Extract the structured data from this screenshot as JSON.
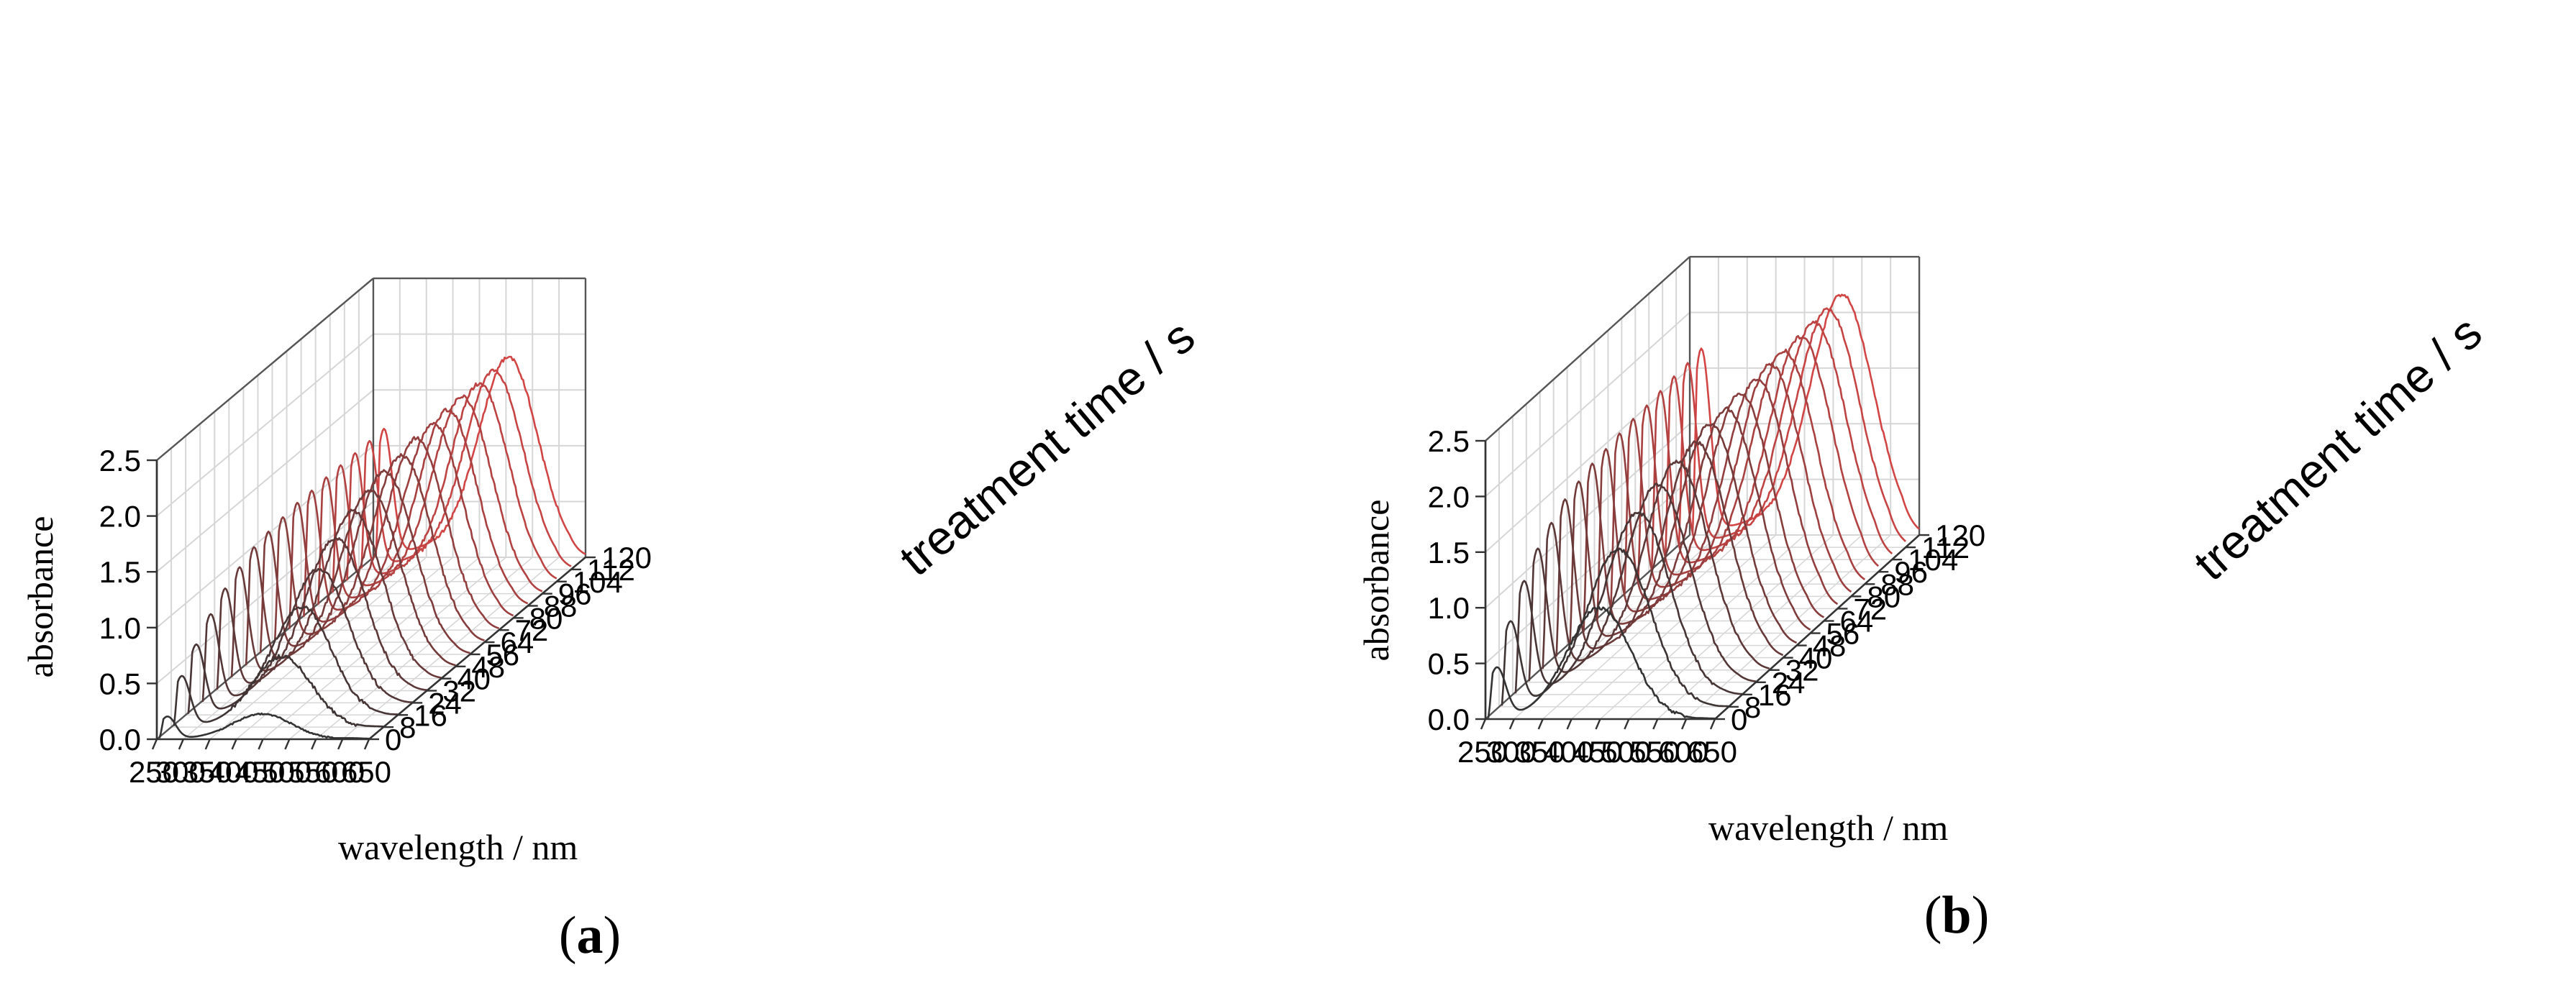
{
  "chart_data": [
    {
      "type": "line",
      "panel": "a",
      "panel_label": "a",
      "xlabel": "wavelength / nm",
      "ylabel": "absorbance",
      "zlabel": "treatment time / s",
      "xlim": [
        250,
        650
      ],
      "ylim": [
        0,
        2.5
      ],
      "zlim": [
        0,
        120
      ],
      "x_ticks": [
        "250",
        "300",
        "350",
        "400",
        "450",
        "500",
        "550",
        "600",
        "650"
      ],
      "y_ticks": [
        "0.0",
        "0.5",
        "1.0",
        "1.5",
        "2.0",
        "2.5"
      ],
      "z_ticks": [
        "0",
        "8",
        "16",
        "24",
        "32",
        "40",
        "48",
        "56",
        "64",
        "72",
        "80",
        "88",
        "96",
        "104",
        "112",
        "120"
      ],
      "series_times": [
        0,
        8,
        16,
        24,
        32,
        40,
        48,
        56,
        64,
        72,
        80,
        88,
        96,
        104,
        112,
        120
      ],
      "uv_peak_nm": 270,
      "main_peak_nm": [
        450,
        460,
        470,
        475,
        480,
        485,
        490,
        490,
        495,
        495,
        500,
        500,
        500,
        505,
        505,
        505
      ],
      "uv_peak_absorbance": [
        0.2,
        0.45,
        0.62,
        0.78,
        0.9,
        0.98,
        1.05,
        1.08,
        1.1,
        1.12,
        1.12,
        1.13,
        1.13,
        1.13,
        1.13,
        1.13
      ],
      "main_peak_absorbance": [
        0.22,
        0.62,
        0.95,
        1.18,
        1.35,
        1.48,
        1.56,
        1.62,
        1.66,
        1.7,
        1.72,
        1.74,
        1.75,
        1.76,
        1.77,
        1.78
      ],
      "color_early": "#333333",
      "color_late": "#d24545"
    },
    {
      "type": "line",
      "panel": "b",
      "panel_label": "b",
      "xlabel": "wavelength / nm",
      "ylabel": "absorbance",
      "zlabel": "treatment time / s",
      "xlim": [
        250,
        650
      ],
      "ylim": [
        0,
        2.5
      ],
      "zlim": [
        0,
        120
      ],
      "x_ticks": [
        "250",
        "300",
        "350",
        "400",
        "450",
        "500",
        "550",
        "600",
        "650"
      ],
      "y_ticks": [
        "0.0",
        "0.5",
        "1.0",
        "1.5",
        "2.0",
        "2.5"
      ],
      "z_ticks": [
        "0",
        "8",
        "16",
        "24",
        "32",
        "40",
        "48",
        "56",
        "64",
        "72",
        "80",
        "88",
        "96",
        "104",
        "112",
        "120"
      ],
      "series_times": [
        0,
        8,
        16,
        24,
        32,
        40,
        48,
        56,
        64,
        72,
        80,
        88,
        96,
        104,
        112,
        120
      ],
      "uv_peak_nm": 270,
      "main_peak_nm": [
        450,
        460,
        470,
        480,
        490,
        500,
        500,
        505,
        505,
        510,
        510,
        510,
        515,
        515,
        515,
        515
      ],
      "uv_peak_absorbance": [
        0.45,
        0.75,
        1.0,
        1.18,
        1.3,
        1.4,
        1.45,
        1.5,
        1.52,
        1.55,
        1.57,
        1.58,
        1.6,
        1.62,
        1.63,
        1.65
      ],
      "main_peak_absorbance": [
        0.97,
        1.38,
        1.6,
        1.75,
        1.85,
        1.92,
        1.97,
        2.0,
        2.03,
        2.05,
        2.07,
        2.08,
        2.1,
        2.12,
        2.13,
        2.15
      ],
      "color_early": "#333333",
      "color_late": "#d24545"
    }
  ]
}
